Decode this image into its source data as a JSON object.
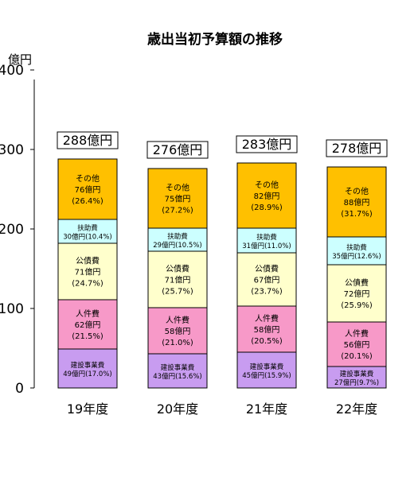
{
  "chart_data": {
    "type": "bar",
    "stacked": true,
    "title": "歳出当初予算額の推移",
    "ylabel": "億円",
    "ylim": [
      0,
      450
    ],
    "yticks": [
      0,
      100,
      200,
      300,
      400
    ],
    "grid": false,
    "categories": [
      "19年度",
      "20年度",
      "21年度",
      "22年度"
    ],
    "totals": [
      "288億円",
      "276億円",
      "283億円",
      "278億円"
    ],
    "series": [
      {
        "name": "建設事業費",
        "color": "#c89cf0",
        "values": [
          49,
          43,
          45,
          27
        ],
        "labels": [
          [
            "建設事業費",
            "49億円(17.0%)"
          ],
          [
            "建設事業費",
            "43億円(15.6%)"
          ],
          [
            "建設事業費",
            "45億円(15.9%)"
          ],
          [
            "建設事業費",
            "27億円(9.7%)"
          ]
        ]
      },
      {
        "name": "人件費",
        "color": "#f799c8",
        "values": [
          62,
          58,
          58,
          56
        ],
        "labels": [
          [
            "人件費",
            "62億円",
            "(21.5%)"
          ],
          [
            "人件費",
            "58億円",
            "(21.0%)"
          ],
          [
            "人件費",
            "58億円",
            "(20.5%)"
          ],
          [
            "人件費",
            "56億円",
            "(20.1%)"
          ]
        ]
      },
      {
        "name": "公債費",
        "color": "#ffffcc",
        "values": [
          71,
          71,
          67,
          72
        ],
        "labels": [
          [
            "公債費",
            "71億円",
            "(24.7%)"
          ],
          [
            "公債費",
            "71億円",
            "(25.7%)"
          ],
          [
            "公債費",
            "67億円",
            "(23.7%)"
          ],
          [
            "公債費",
            "72億円",
            "(25.9%)"
          ]
        ]
      },
      {
        "name": "扶助費",
        "color": "#ccffff",
        "values": [
          30,
          29,
          31,
          35
        ],
        "labels": [
          [
            "扶助費",
            "30億円(10.4%)"
          ],
          [
            "扶助費",
            "29億円(10.5%)"
          ],
          [
            "扶助費",
            "31億円(11.0%)"
          ],
          [
            "扶助費",
            "35億円(12.6%)"
          ]
        ]
      },
      {
        "name": "その他",
        "color": "#ffc000",
        "values": [
          76,
          75,
          82,
          88
        ],
        "labels": [
          [
            "その他",
            "76億円",
            "(26.4%)"
          ],
          [
            "その他",
            "75億円",
            "(27.2%)"
          ],
          [
            "その他",
            "82億円",
            "(28.9%)"
          ],
          [
            "その他",
            "88億円",
            "(31.7%)"
          ]
        ]
      }
    ]
  }
}
